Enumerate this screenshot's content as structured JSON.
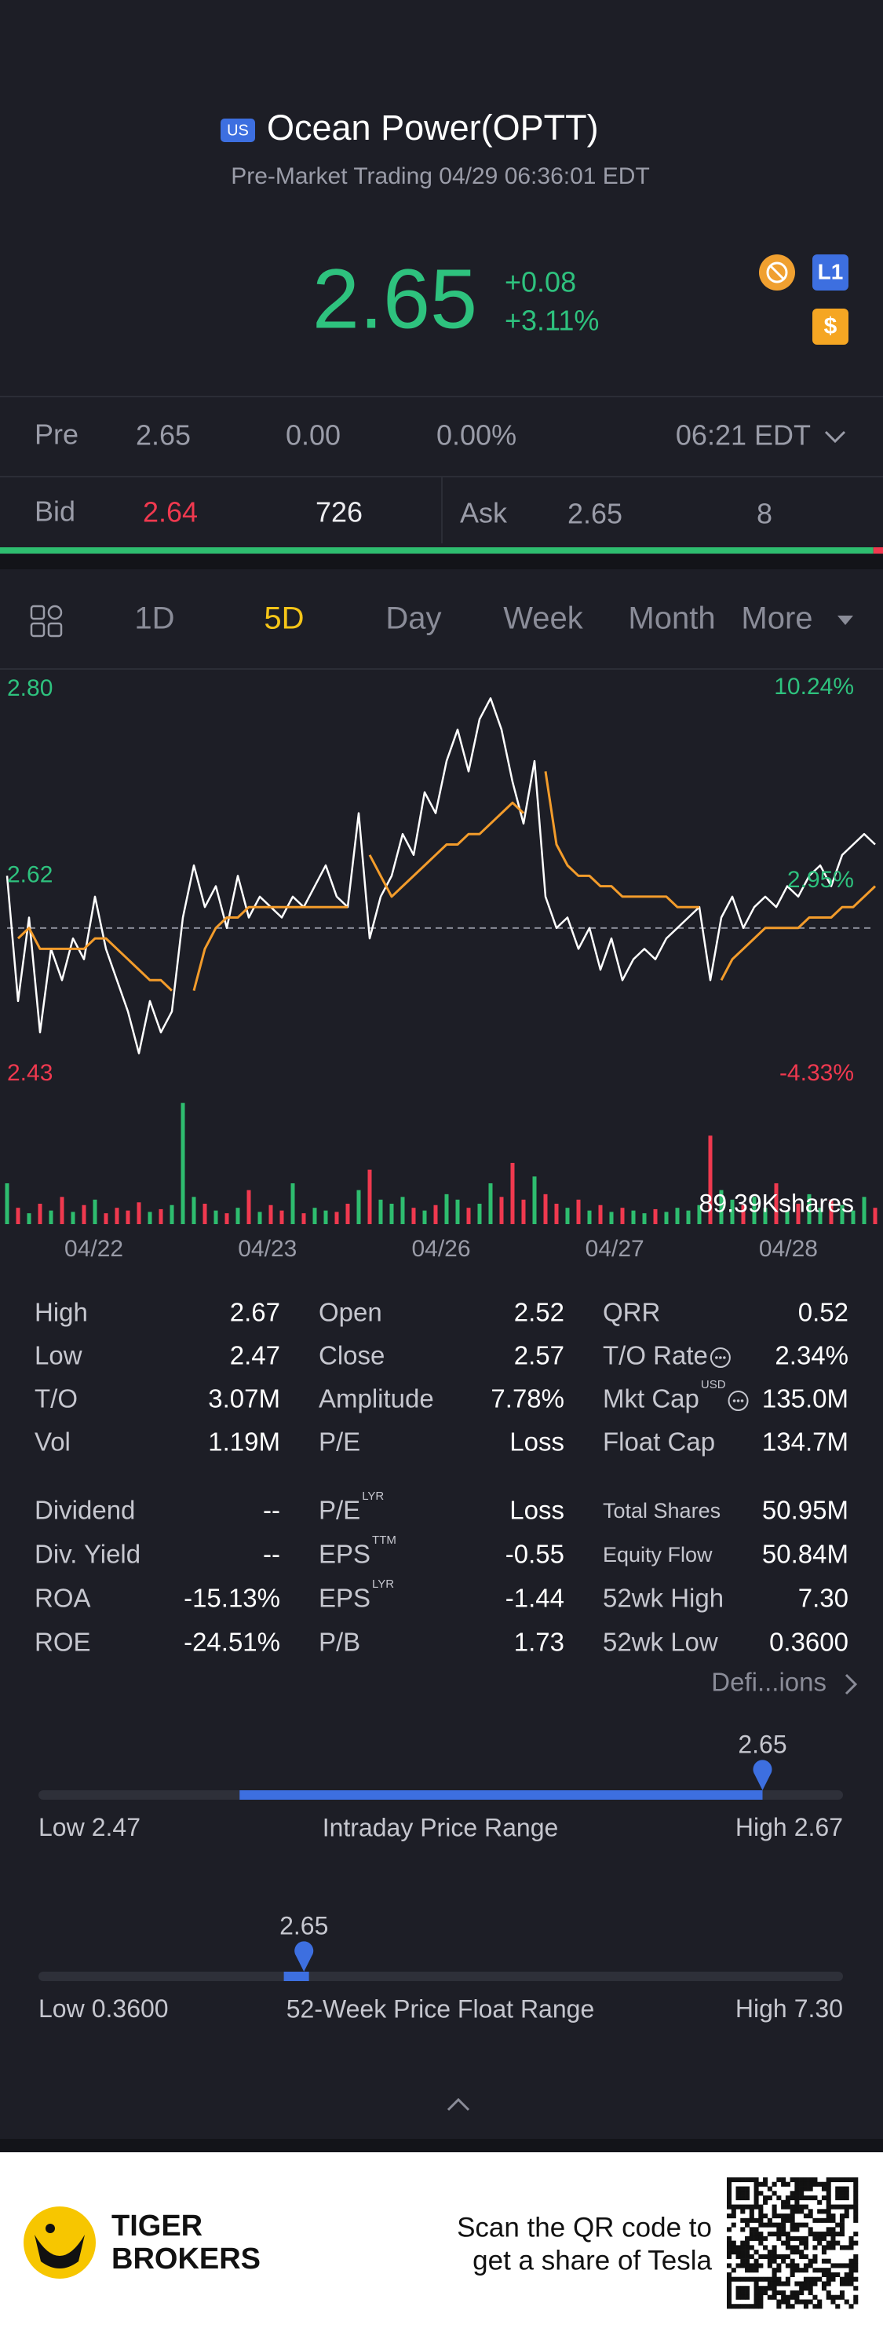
{
  "header": {
    "market": "US",
    "title": "Ocean Power(OPTT)",
    "subtitle": "Pre-Market Trading 04/29 06:36:01 EDT",
    "price": "2.65",
    "change": "+0.08",
    "change_pct": "+3.11%",
    "badges": [
      "L1",
      "$"
    ]
  },
  "pre": {
    "label": "Pre",
    "price": "2.65",
    "change": "0.00",
    "change_pct": "0.00%",
    "time": "06:21 EDT"
  },
  "bid_ask": {
    "bid_label": "Bid",
    "bid": "2.64",
    "bid_size": 726,
    "ask_label": "Ask",
    "ask": "2.65",
    "ask_size": 8
  },
  "tabs": {
    "items": [
      "1D",
      "5D",
      "Day",
      "Week",
      "Month",
      "More"
    ],
    "active": 1
  },
  "chart_data": {
    "type": "line",
    "ylim": [
      2.43,
      2.8
    ],
    "yticks": [
      {
        "value": 2.8,
        "label": "2.80"
      },
      2.62,
      2.43
    ],
    "y2lim": [
      -4.33,
      10.24
    ],
    "y2ticks": [
      {
        "value": 10.24,
        "label": "10.24%"
      },
      {
        "value": 2.95,
        "label": "2.95%"
      },
      {
        "value": -4.33,
        "label": "-4.33%"
      }
    ],
    "reference_line": 2.57,
    "day_labels": [
      "04/22",
      "04/23",
      "04/26",
      "04/27",
      "04/28"
    ],
    "series": [
      {
        "color": "#ffffff",
        "values": [
          2.62,
          2.5,
          2.58,
          2.47,
          2.55,
          2.52,
          2.56,
          2.54,
          2.6,
          2.55,
          2.52,
          2.49,
          2.45,
          2.5,
          2.47,
          2.49,
          2.58,
          2.63,
          2.59,
          2.61,
          2.57,
          2.62,
          2.58,
          2.6,
          2.59,
          2.58,
          2.6,
          2.59,
          2.61,
          2.63,
          2.6,
          2.59,
          2.68,
          2.56,
          2.6,
          2.62,
          2.66,
          2.64,
          2.7,
          2.68,
          2.73,
          2.76,
          2.72,
          2.77,
          2.79,
          2.76,
          2.71,
          2.67,
          2.73,
          2.6,
          2.57,
          2.58,
          2.55,
          2.57,
          2.53,
          2.56,
          2.52,
          2.54,
          2.55,
          2.54,
          2.56,
          2.57,
          2.58,
          2.59,
          2.52,
          2.58,
          2.6,
          2.57,
          2.59,
          2.6,
          2.59,
          2.61,
          2.6,
          2.62,
          2.63,
          2.61,
          2.64,
          2.65,
          2.66,
          2.65
        ]
      },
      {
        "color": "#f39c2b",
        "values": [
          null,
          2.56,
          2.57,
          2.55,
          2.55,
          2.55,
          2.55,
          2.55,
          2.56,
          2.56,
          2.55,
          2.54,
          2.53,
          2.52,
          2.52,
          2.51,
          null,
          2.51,
          2.55,
          2.57,
          2.58,
          2.58,
          2.59,
          2.59,
          2.59,
          2.59,
          2.59,
          2.59,
          2.59,
          2.59,
          2.59,
          2.59,
          null,
          2.64,
          2.62,
          2.6,
          2.61,
          2.62,
          2.63,
          2.64,
          2.65,
          2.65,
          2.66,
          2.66,
          2.67,
          2.68,
          2.69,
          2.68,
          null,
          2.72,
          2.65,
          2.63,
          2.62,
          2.62,
          2.61,
          2.61,
          2.6,
          2.6,
          2.6,
          2.6,
          2.6,
          2.59,
          2.59,
          2.59,
          null,
          2.52,
          2.54,
          2.55,
          2.56,
          2.57,
          2.57,
          2.57,
          2.57,
          2.58,
          2.58,
          2.58,
          2.59,
          2.59,
          2.6,
          2.61
        ]
      }
    ],
    "volume": {
      "label": "89.39Kshares",
      "vlim": [
        0,
        89.39
      ],
      "up_color": "#2ebd6f",
      "down_color": "#f0394f",
      "values": [
        30,
        12,
        8,
        15,
        10,
        20,
        9,
        14,
        18,
        8,
        12,
        10,
        16,
        9,
        11,
        14,
        89,
        20,
        15,
        10,
        8,
        12,
        25,
        9,
        14,
        10,
        30,
        8,
        12,
        10,
        9,
        15,
        25,
        40,
        18,
        15,
        20,
        12,
        10,
        14,
        22,
        18,
        12,
        15,
        30,
        20,
        45,
        18,
        35,
        22,
        15,
        12,
        18,
        10,
        14,
        9,
        12,
        10,
        8,
        11,
        9,
        12,
        10,
        14,
        65,
        25,
        18,
        14,
        20,
        12,
        30,
        10,
        15,
        22,
        12,
        18,
        14,
        10,
        20,
        12
      ]
    }
  },
  "stats": {
    "rows": [
      [
        {
          "label": "High",
          "value": "2.67"
        },
        {
          "label": "Open",
          "value": "2.52"
        },
        {
          "label": "QRR",
          "value": "0.52"
        }
      ],
      [
        {
          "label": "Low",
          "value": "2.47"
        },
        {
          "label": "Close",
          "value": "2.57"
        },
        {
          "label": "T/O Rate",
          "value": "2.34%"
        }
      ],
      [
        {
          "label": "T/O",
          "value": "3.07M"
        },
        {
          "label": "Amplitude",
          "value": "7.78%"
        },
        {
          "label": "Mkt Cap",
          "sup": "USD",
          "value": "135.0M"
        }
      ],
      [
        {
          "label": "Vol",
          "value": "1.19M"
        },
        {
          "label": "P/E",
          "value": "Loss"
        },
        {
          "label": "Float Cap",
          "value": "134.7M"
        }
      ],
      [
        {
          "label": "Dividend",
          "value": "--"
        },
        {
          "label": "P/E",
          "sup": "LYR",
          "value": "Loss"
        },
        {
          "label": "Total Shares",
          "value": "50.95M"
        }
      ],
      [
        {
          "label": "Div. Yield",
          "value": "--"
        },
        {
          "label": "EPS",
          "sup": "TTM",
          "value": "-0.55"
        },
        {
          "label": "Equity Flow",
          "value": "50.84M"
        }
      ],
      [
        {
          "label": "ROA",
          "value": "-15.13%"
        },
        {
          "label": "EPS",
          "sup": "LYR",
          "value": "-1.44"
        },
        {
          "label": "52wk High",
          "value": "7.30"
        }
      ],
      [
        {
          "label": "ROE",
          "value": "-24.51%"
        },
        {
          "label": "P/B",
          "value": "1.73"
        },
        {
          "label": "52wk Low",
          "value": "0.3600"
        }
      ]
    ],
    "definitions": "Defi...ions"
  },
  "ranges": [
    {
      "title": "Intraday Price Range",
      "low_label": "Low",
      "low": "2.47",
      "high_label": "High",
      "high": "2.67",
      "current": "2.65",
      "fill_from": "2.52"
    },
    {
      "title": "52-Week Price Float Range",
      "low_label": "Low",
      "low": "0.3600",
      "high_label": "High",
      "high": "7.30",
      "current": "2.65",
      "fill_from": "2.52"
    }
  ],
  "footer": {
    "logo": [
      "TIGER",
      "BROKERS"
    ],
    "lines": [
      "Scan the QR code to",
      "get a share of Tesla"
    ]
  }
}
